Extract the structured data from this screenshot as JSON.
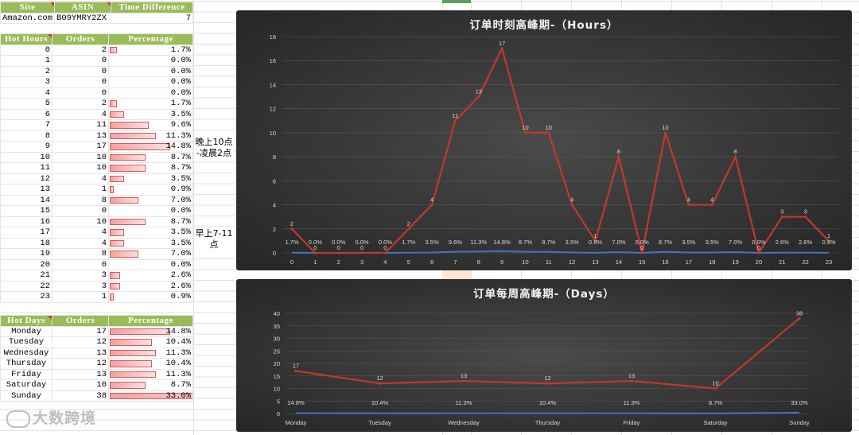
{
  "site_table": {
    "headers": [
      "Site",
      "ASIN",
      "Time Difference"
    ],
    "row": [
      "Amazon.com",
      "B09YMRY2ZX",
      "7"
    ]
  },
  "hours_table": {
    "headers": [
      "Hot Hours",
      "Orders",
      "Percentage"
    ],
    "rows": [
      {
        "hour": "0",
        "orders": "2",
        "pct": "1.7%",
        "frac": 0.017
      },
      {
        "hour": "1",
        "orders": "0",
        "pct": "0.0%",
        "frac": 0
      },
      {
        "hour": "2",
        "orders": "0",
        "pct": "0.0%",
        "frac": 0
      },
      {
        "hour": "3",
        "orders": "0",
        "pct": "0.0%",
        "frac": 0
      },
      {
        "hour": "4",
        "orders": "0",
        "pct": "0.0%",
        "frac": 0
      },
      {
        "hour": "5",
        "orders": "2",
        "pct": "1.7%",
        "frac": 0.017
      },
      {
        "hour": "6",
        "orders": "4",
        "pct": "3.5%",
        "frac": 0.035
      },
      {
        "hour": "7",
        "orders": "11",
        "pct": "9.6%",
        "frac": 0.096
      },
      {
        "hour": "8",
        "orders": "13",
        "pct": "11.3%",
        "frac": 0.113
      },
      {
        "hour": "9",
        "orders": "17",
        "pct": "14.8%",
        "frac": 0.148
      },
      {
        "hour": "10",
        "orders": "10",
        "pct": "8.7%",
        "frac": 0.087
      },
      {
        "hour": "11",
        "orders": "10",
        "pct": "8.7%",
        "frac": 0.087
      },
      {
        "hour": "12",
        "orders": "4",
        "pct": "3.5%",
        "frac": 0.035
      },
      {
        "hour": "13",
        "orders": "1",
        "pct": "0.9%",
        "frac": 0.009
      },
      {
        "hour": "14",
        "orders": "8",
        "pct": "7.0%",
        "frac": 0.07
      },
      {
        "hour": "15",
        "orders": "0",
        "pct": "0.0%",
        "frac": 0
      },
      {
        "hour": "16",
        "orders": "10",
        "pct": "8.7%",
        "frac": 0.087
      },
      {
        "hour": "17",
        "orders": "4",
        "pct": "3.5%",
        "frac": 0.035
      },
      {
        "hour": "18",
        "orders": "4",
        "pct": "3.5%",
        "frac": 0.035
      },
      {
        "hour": "19",
        "orders": "8",
        "pct": "7.0%",
        "frac": 0.07
      },
      {
        "hour": "20",
        "orders": "0",
        "pct": "0.0%",
        "frac": 0
      },
      {
        "hour": "21",
        "orders": "3",
        "pct": "2.6%",
        "frac": 0.026
      },
      {
        "hour": "22",
        "orders": "3",
        "pct": "2.6%",
        "frac": 0.026
      },
      {
        "hour": "23",
        "orders": "1",
        "pct": "0.9%",
        "frac": 0.009
      }
    ]
  },
  "days_table": {
    "headers": [
      "Hot Days",
      "Orders",
      "Percentage"
    ],
    "rows": [
      {
        "day": "Monday",
        "orders": "17",
        "pct": "14.8%",
        "frac": 0.148
      },
      {
        "day": "Tuesday",
        "orders": "12",
        "pct": "10.4%",
        "frac": 0.104
      },
      {
        "day": "Wednesday",
        "orders": "13",
        "pct": "11.3%",
        "frac": 0.113
      },
      {
        "day": "Thursday",
        "orders": "12",
        "pct": "10.4%",
        "frac": 0.104
      },
      {
        "day": "Friday",
        "orders": "13",
        "pct": "11.3%",
        "frac": 0.113
      },
      {
        "day": "Saturday",
        "orders": "10",
        "pct": "8.7%",
        "frac": 0.087
      },
      {
        "day": "Sunday",
        "orders": "38",
        "pct": "33.0%",
        "frac": 0.33
      }
    ]
  },
  "notes": {
    "evening": "晚上10点\n-凌晨2点",
    "morning": "早上7-11\n点"
  },
  "watermark": "大数跨境",
  "colors": {
    "header_green": "#9bbb59",
    "orders_line": "#c0392b",
    "percent_line": "#4472c4",
    "chart_bg": "#3a3a3a"
  },
  "chart_data": [
    {
      "type": "line",
      "title": "订单时刻高峰期-（Hours）",
      "categories": [
        "0",
        "1",
        "2",
        "3",
        "4",
        "5",
        "6",
        "7",
        "8",
        "9",
        "10",
        "11",
        "12",
        "13",
        "14",
        "15",
        "16",
        "17",
        "18",
        "19",
        "20",
        "21",
        "22",
        "23"
      ],
      "ylim": [
        0,
        18
      ],
      "yticks": [
        0,
        2,
        4,
        6,
        8,
        10,
        12,
        14,
        16,
        18
      ],
      "series": [
        {
          "values": [
            2,
            0,
            0,
            0,
            0,
            2,
            4,
            11,
            13,
            17,
            10,
            10,
            4,
            1,
            8,
            0,
            10,
            4,
            4,
            8,
            0,
            3,
            3,
            1
          ],
          "labels": [
            "2",
            "0",
            "0",
            "0",
            "0",
            "2",
            "4",
            "11",
            "13",
            "17",
            "10",
            "10",
            "4",
            "1",
            "8",
            "0",
            "10",
            "4",
            "4",
            "8",
            "0",
            "3",
            "3",
            "1"
          ]
        },
        {
          "values": [
            0.017,
            0,
            0,
            0,
            0,
            0.017,
            0.035,
            0.096,
            0.113,
            0.148,
            0.087,
            0.087,
            0.035,
            0.009,
            0.07,
            0,
            0.087,
            0.035,
            0.035,
            0.07,
            0,
            0.026,
            0.026,
            0.009
          ],
          "labels": [
            "1.7%",
            "0.0%",
            "0.0%",
            "0.0%",
            "0.0%",
            "1.7%",
            "3.5%",
            "9.6%",
            "11.3%",
            "14.8%",
            "8.7%",
            "8.7%",
            "3.5%",
            "0.9%",
            "7.0%",
            "0.0%",
            "8.7%",
            "3.5%",
            "3.5%",
            "7.0%",
            "0.0%",
            "2.6%",
            "2.6%",
            "0.9%"
          ]
        }
      ],
      "grid": true
    },
    {
      "type": "line",
      "title": "订单每周高峰期-（Days）",
      "categories": [
        "Monday",
        "Tuesday",
        "Wednesday",
        "Thursday",
        "Friday",
        "Saturday",
        "Sunday"
      ],
      "ylim": [
        0,
        40
      ],
      "yticks": [
        0,
        5,
        10,
        15,
        20,
        25,
        30,
        35,
        40
      ],
      "series": [
        {
          "values": [
            17,
            12,
            13,
            12,
            13,
            10,
            38
          ],
          "labels": [
            "17",
            "12",
            "13",
            "12",
            "13",
            "10",
            "38"
          ]
        },
        {
          "values": [
            0.148,
            0.104,
            0.113,
            0.104,
            0.113,
            0.087,
            0.33
          ],
          "labels": [
            "14.8%",
            "10.4%",
            "11.3%",
            "10.4%",
            "11.3%",
            "8.7%",
            "33.0%"
          ]
        }
      ],
      "grid": true
    }
  ]
}
